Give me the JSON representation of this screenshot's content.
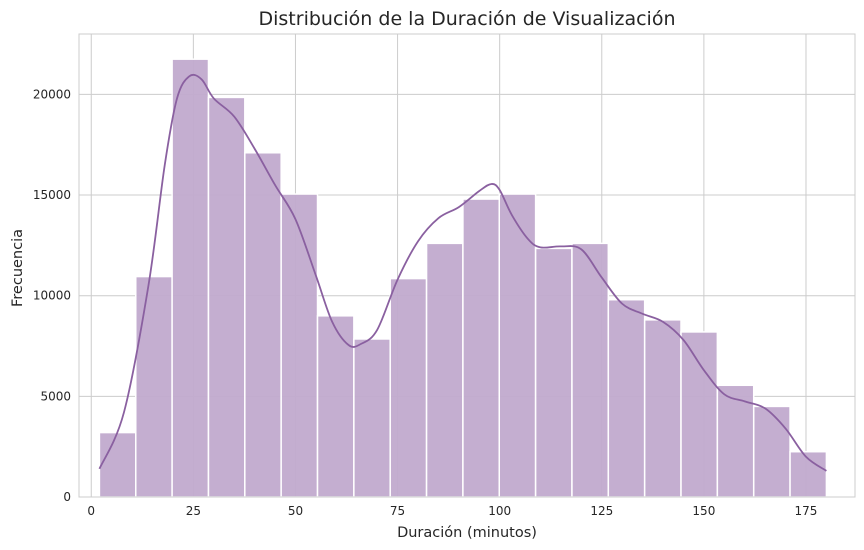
{
  "chart_data": {
    "type": "bar",
    "subtype": "histogram",
    "title": "Distribución de la Duración de Visualización",
    "xlabel": "Duración (minutos)",
    "ylabel": "Frecuencia",
    "xlim": [
      -3.0,
      187.0
    ],
    "ylim": [
      0,
      23000
    ],
    "xticks": [
      0,
      25,
      50,
      75,
      100,
      125,
      150,
      175
    ],
    "yticks": [
      0,
      5000,
      10000,
      15000,
      20000
    ],
    "grid": true,
    "bin_edges": [
      2,
      10.9,
      19.8,
      28.7,
      37.6,
      46.5,
      55.4,
      64.3,
      73.2,
      82.1,
      91,
      99.9,
      108.8,
      117.7,
      126.6,
      135.5,
      144.4,
      153.3,
      162.2,
      171.1,
      180
    ],
    "values": [
      3200,
      10950,
      21750,
      19850,
      17100,
      15050,
      9000,
      7850,
      10850,
      12600,
      14800,
      15050,
      12350,
      12600,
      9800,
      8800,
      8200,
      5550,
      4500,
      2250
    ],
    "kde": {
      "x": [
        2,
        8,
        14,
        18,
        21,
        24,
        27,
        30,
        35,
        40,
        45,
        50,
        55,
        59,
        63,
        66,
        70,
        75,
        80,
        85,
        90,
        95,
        98,
        100,
        103,
        107,
        110,
        115,
        120,
        125,
        130,
        135,
        140,
        145,
        150,
        155,
        160,
        165,
        170,
        175,
        180
      ],
      "y": [
        1400,
        4200,
        10500,
        16500,
        19800,
        20900,
        20750,
        19800,
        18900,
        17300,
        15500,
        13800,
        11000,
        8700,
        7550,
        7600,
        8300,
        10800,
        12700,
        13850,
        14400,
        15200,
        15550,
        15250,
        14000,
        12800,
        12400,
        12450,
        12300,
        10900,
        9600,
        9100,
        8700,
        7800,
        6300,
        5100,
        4750,
        4400,
        3400,
        2000,
        1300
      ]
    },
    "colors": {
      "bar_fill": "#c1aacd",
      "bar_stroke": "#ffffff",
      "kde_line": "#8a60a0",
      "grid": "#cccccc",
      "background": "#ffffff"
    }
  }
}
